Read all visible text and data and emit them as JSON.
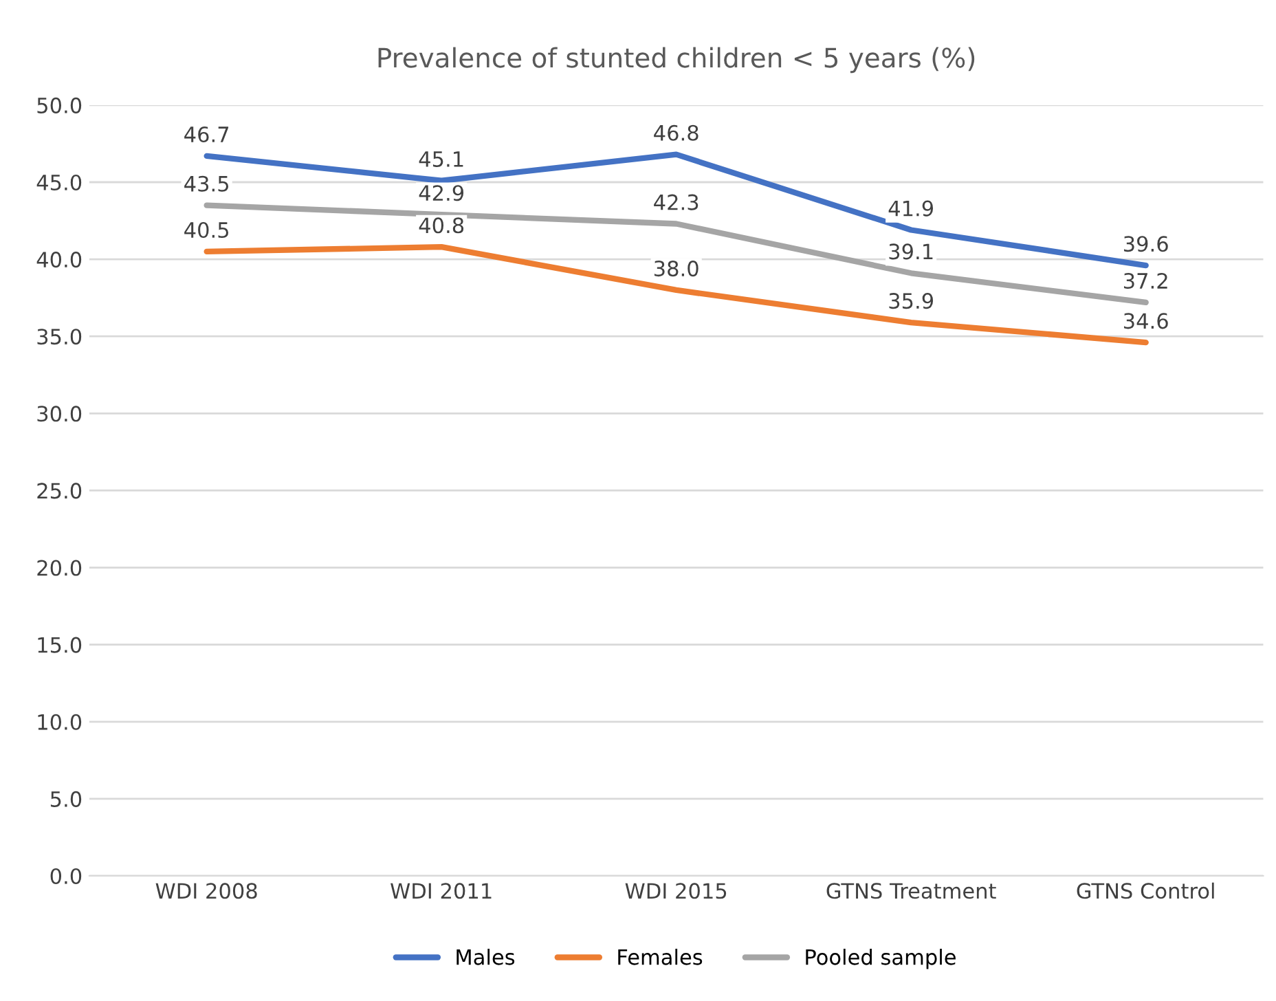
{
  "chart_data": {
    "type": "line",
    "title": "Prevalence of stunted children < 5 years (%)",
    "categories": [
      "WDI 2008",
      "WDI 2011",
      "WDI 2015",
      "GTNS Treatment",
      "GTNS Control"
    ],
    "series": [
      {
        "name": "Males",
        "color": "#4472c4",
        "values": [
          46.7,
          45.1,
          46.8,
          41.9,
          39.6
        ],
        "value_labels": [
          "46.7",
          "45.1",
          "46.8",
          "41.9",
          "39.6"
        ]
      },
      {
        "name": "Females",
        "color": "#ed7d31",
        "values": [
          40.5,
          40.8,
          38.0,
          35.9,
          34.6
        ],
        "value_labels": [
          "40.5",
          "40.8",
          "38.0",
          "35.9",
          "34.6"
        ]
      },
      {
        "name": "Pooled sample",
        "color": "#a5a5a5",
        "values": [
          43.5,
          42.9,
          42.3,
          39.1,
          37.2
        ],
        "value_labels": [
          "43.5",
          "42.9",
          "42.3",
          "39.1",
          "37.2"
        ]
      }
    ],
    "ylim": [
      0,
      50
    ],
    "yticks": [
      {
        "value": 0,
        "label": "0.0"
      },
      {
        "value": 5,
        "label": "5.0"
      },
      {
        "value": 10,
        "label": "10.0"
      },
      {
        "value": 15,
        "label": "15.0"
      },
      {
        "value": 20,
        "label": "20.0"
      },
      {
        "value": 25,
        "label": "25.0"
      },
      {
        "value": 30,
        "label": "30.0"
      },
      {
        "value": 35,
        "label": "35.0"
      },
      {
        "value": 40,
        "label": "40.0"
      },
      {
        "value": 45,
        "label": "45.0"
      },
      {
        "value": 50,
        "label": "50.0"
      }
    ],
    "grid": "y",
    "legend": "bottom",
    "marker": "none",
    "line_style": "solid"
  }
}
